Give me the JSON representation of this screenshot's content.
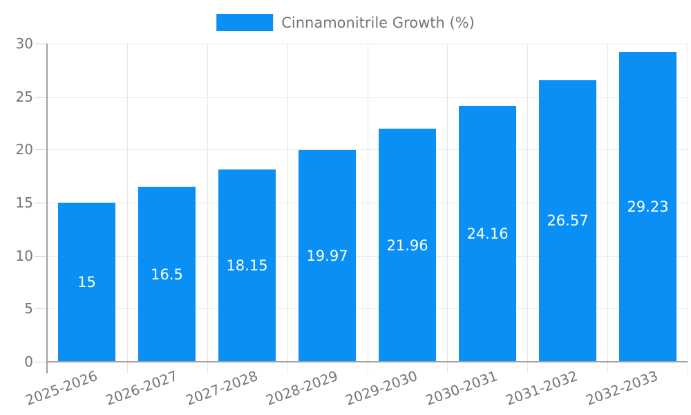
{
  "legend": {
    "label": "Cinnamonitrile Growth (%)"
  },
  "chart_data": {
    "type": "bar",
    "title": "",
    "xlabel": "",
    "ylabel": "",
    "series_name": "Cinnamonitrile Growth (%)",
    "categories": [
      "2025-2026",
      "2026-2027",
      "2027-2028",
      "2028-2029",
      "2029-2030",
      "2030-2031",
      "2031-2032",
      "2032-2033"
    ],
    "values": [
      15,
      16.5,
      18.15,
      19.97,
      21.96,
      24.16,
      26.57,
      29.23
    ],
    "value_labels": [
      "15",
      "16.5",
      "18.15",
      "19.97",
      "21.96",
      "24.16",
      "26.57",
      "29.23"
    ],
    "ylim": [
      0,
      30
    ],
    "yticks": [
      0,
      5,
      10,
      15,
      20,
      25,
      30
    ],
    "grid": true,
    "legend_position": "top-center",
    "colors": {
      "bar": "#0A90F5",
      "grid": "#e6e6e6",
      "tick": "#cccccc",
      "axis": "#a0a0a0",
      "label_text": "#757575",
      "value_label_text": "#ffffff",
      "background": "#ffffff"
    }
  }
}
